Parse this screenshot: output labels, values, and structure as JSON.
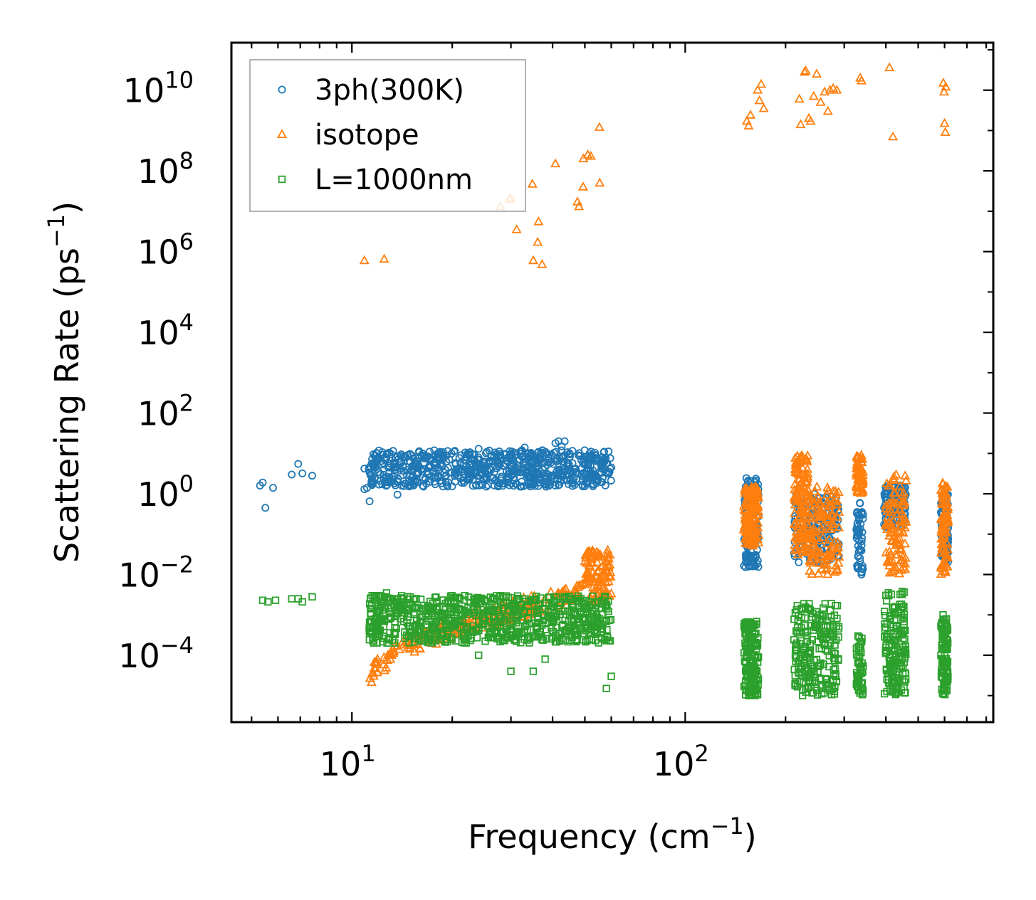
{
  "chart_data": {
    "type": "scatter",
    "xscale": "log",
    "yscale": "log",
    "xlabel": "Frequency (cm",
    "xlabel_sup": "−1",
    "xlabel_end": ")",
    "ylabel": "Scattering Rate (ps",
    "ylabel_sup": "−1",
    "ylabel_end": ")",
    "xlim": [
      4.35,
      840
    ],
    "ylim": [
      2.2e-06,
      150000000000
    ],
    "x_ticks": [
      {
        "value": 10,
        "base": "10",
        "exp": "1"
      },
      {
        "value": 100,
        "base": "10",
        "exp": "2"
      }
    ],
    "y_ticks": [
      {
        "value": 0.0001,
        "base": "10",
        "exp": "−4"
      },
      {
        "value": 0.01,
        "base": "10",
        "exp": "−2"
      },
      {
        "value": 1,
        "base": "10",
        "exp": "0"
      },
      {
        "value": 100,
        "base": "10",
        "exp": "2"
      },
      {
        "value": 10000,
        "base": "10",
        "exp": "4"
      },
      {
        "value": 1000000,
        "base": "10",
        "exp": "6"
      },
      {
        "value": 100000000,
        "base": "10",
        "exp": "8"
      },
      {
        "value": 10000000000,
        "base": "10",
        "exp": "10"
      }
    ],
    "legend_position": "top-left",
    "series": [
      {
        "name": "3ph(300K)",
        "marker": "circle",
        "color": "#1f77b4",
        "points": [
          [
            5.3,
            1.6
          ],
          [
            5.4,
            1.9
          ],
          [
            5.5,
            0.45
          ],
          [
            5.8,
            1.4
          ],
          [
            6.6,
            3.0
          ],
          [
            6.9,
            5.5
          ],
          [
            7.1,
            3.2
          ],
          [
            7.6,
            2.8
          ],
          [
            10.9,
            4.2
          ],
          [
            10.9,
            1.3
          ],
          [
            11.1,
            1.4
          ],
          [
            11.3,
            0.65
          ],
          [
            11.5,
            7.2
          ],
          [
            11.6,
            9.5
          ],
          [
            11.9,
            7.0
          ],
          [
            12.3,
            5.3
          ],
          [
            12.7,
            1.6
          ],
          [
            13.1,
            2.0
          ],
          [
            13.7,
            0.95
          ],
          [
            14.5,
            8.0
          ],
          [
            15.3,
            7.5
          ],
          [
            16.2,
            8.5
          ],
          [
            17.0,
            4.5
          ],
          [
            17.8,
            6.0
          ],
          [
            18.7,
            5.0
          ],
          [
            19.6,
            7.0
          ],
          [
            20.4,
            2.0
          ],
          [
            21.3,
            4.0
          ],
          [
            22.5,
            5.0
          ],
          [
            24.0,
            13.0
          ],
          [
            25.2,
            4.5
          ],
          [
            26.4,
            2.5
          ],
          [
            27.4,
            6.5
          ],
          [
            28.5,
            5.0
          ],
          [
            29.7,
            8.0
          ],
          [
            30.8,
            3.5
          ],
          [
            32.0,
            1.5
          ],
          [
            33.0,
            14.0
          ],
          [
            34.1,
            6.0
          ],
          [
            35.0,
            3.0
          ],
          [
            36.2,
            8.0
          ],
          [
            37.3,
            12.0
          ],
          [
            38.4,
            10.0
          ],
          [
            39.6,
            6.0
          ],
          [
            40.8,
            18.0
          ],
          [
            41.7,
            20.0
          ],
          [
            42.6,
            15.0
          ],
          [
            43.5,
            20.0
          ],
          [
            45.0,
            10.0
          ],
          [
            46.5,
            4.0
          ],
          [
            47.8,
            9.0
          ],
          [
            48.9,
            3.0
          ],
          [
            50.5,
            2.0
          ],
          [
            52.0,
            5.0
          ],
          [
            54.0,
            6.5
          ],
          [
            56.0,
            5.0
          ],
          [
            58.0,
            5.5
          ],
          [
            60.0,
            4.5
          ],
          [
            152,
            1.5
          ],
          [
            152,
            0.02
          ],
          [
            155,
            0.3
          ],
          [
            158,
            0.02
          ],
          [
            162,
            0.5
          ],
          [
            165,
            0.1
          ],
          [
            215,
            0.7
          ],
          [
            220,
            0.3
          ],
          [
            225,
            0.05
          ],
          [
            235,
            0.6
          ],
          [
            240,
            0.1
          ],
          [
            250,
            0.4
          ],
          [
            260,
            0.3
          ],
          [
            275,
            0.5
          ],
          [
            330,
            0.3
          ],
          [
            332,
            0.1
          ],
          [
            335,
            0.04
          ],
          [
            338,
            0.01
          ],
          [
            405,
            1.5
          ],
          [
            420,
            1.0
          ],
          [
            430,
            0.8
          ],
          [
            445,
            0.5
          ],
          [
            590,
            0.5
          ],
          [
            598,
            0.1
          ],
          [
            605,
            0.02
          ],
          [
            610,
            0.3
          ]
        ],
        "clusters": [
          {
            "x": [
              11.2,
              60
            ],
            "y": [
              1.5,
              12
            ],
            "n": 700
          },
          {
            "x": [
              150,
              166
            ],
            "y": [
              0.015,
              2.5
            ],
            "n": 130
          },
          {
            "x": [
              212,
              290
            ],
            "y": [
              0.02,
              1.0
            ],
            "n": 160
          },
          {
            "x": [
              326,
              342
            ],
            "y": [
              0.01,
              0.6
            ],
            "n": 50
          },
          {
            "x": [
              395,
              460
            ],
            "y": [
              0.15,
              1.6
            ],
            "n": 120
          },
          {
            "x": [
              585,
              615
            ],
            "y": [
              0.02,
              1.0
            ],
            "n": 90
          }
        ]
      },
      {
        "name": "isotope",
        "marker": "triangle",
        "color": "#ff7f0e",
        "points": [
          [
            10.9,
            600000
          ],
          [
            12.5,
            650000
          ],
          [
            27.9,
            13000000
          ],
          [
            29.7,
            20000000
          ],
          [
            30.0,
            21000000
          ],
          [
            31.2,
            3500000
          ],
          [
            34.8,
            47000000
          ],
          [
            35.0,
            600000
          ],
          [
            36.1,
            1700000
          ],
          [
            36.3,
            5500000
          ],
          [
            37.2,
            480000
          ],
          [
            40.8,
            150000000
          ],
          [
            47.5,
            17000000
          ],
          [
            48.0,
            13000000
          ],
          [
            49.4,
            40000000
          ],
          [
            49.5,
            200000000
          ],
          [
            51.0,
            250000000
          ],
          [
            52.1,
            230000000
          ],
          [
            55.3,
            1200000000
          ],
          [
            55.4,
            50000000
          ],
          [
            153,
            1700000000
          ],
          [
            155,
            1300000000
          ],
          [
            157,
            2400000000
          ],
          [
            165,
            10000000000
          ],
          [
            167,
            5500000000
          ],
          [
            169,
            14000000000
          ],
          [
            172,
            3500000000
          ],
          [
            220,
            6000000000
          ],
          [
            222,
            1400000000
          ],
          [
            228,
            28000000000
          ],
          [
            230,
            30000000000
          ],
          [
            235,
            2000000000
          ],
          [
            238,
            1700000000
          ],
          [
            243,
            7000000000
          ],
          [
            248,
            25000000000
          ],
          [
            255,
            5000000000
          ],
          [
            262,
            9000000000
          ],
          [
            268,
            3000000000
          ],
          [
            272,
            10000000000
          ],
          [
            278,
            11000000000
          ],
          [
            285,
            10000000000
          ],
          [
            335,
            20000000000
          ],
          [
            338,
            17000000000
          ],
          [
            410,
            36000000000
          ],
          [
            420,
            700000000
          ],
          [
            595,
            15000000000
          ],
          [
            598,
            9000000000
          ],
          [
            600,
            1500000000
          ],
          [
            603,
            900000000
          ],
          [
            605,
            12000000000
          ]
        ],
        "clusters": [
          {
            "x": [
              11.2,
              60
            ],
            "y": [
              2e-05,
              0.005
            ],
            "n": 260,
            "curve": true
          },
          {
            "x": [
              50,
              60
            ],
            "y": [
              0.006,
              0.04
            ],
            "n": 80
          },
          {
            "x": [
              150,
              166
            ],
            "y": [
              0.05,
              1.5
            ],
            "n": 140
          },
          {
            "x": [
              212,
              235
            ],
            "y": [
              0.03,
              9.0
            ],
            "n": 140
          },
          {
            "x": [
              235,
              290
            ],
            "y": [
              0.01,
              1.5
            ],
            "n": 130
          },
          {
            "x": [
              326,
              342
            ],
            "y": [
              1.0,
              9.0
            ],
            "n": 60
          },
          {
            "x": [
              400,
              460
            ],
            "y": [
              0.01,
              3.0
            ],
            "n": 110
          },
          {
            "x": [
              585,
              615
            ],
            "y": [
              0.01,
              2.0
            ],
            "n": 90
          }
        ]
      },
      {
        "name": "L=1000nm",
        "marker": "square",
        "color": "#2ca02c",
        "points": [
          [
            5.4,
            0.0023
          ],
          [
            5.6,
            0.0021
          ],
          [
            5.9,
            0.0023
          ],
          [
            6.6,
            0.0025
          ],
          [
            6.9,
            0.0025
          ],
          [
            7.1,
            0.0021
          ],
          [
            7.6,
            0.0028
          ],
          [
            11.5,
            0.003
          ],
          [
            12.7,
            0.0035
          ],
          [
            14.0,
            0.0008
          ],
          [
            16.0,
            0.0007
          ],
          [
            24.0,
            0.0001
          ],
          [
            30.0,
            4e-05
          ],
          [
            35.0,
            4e-05
          ],
          [
            38.0,
            8e-05
          ],
          [
            58.0,
            1.5e-05
          ],
          [
            60.0,
            3e-05
          ],
          [
            155,
            1e-05
          ],
          [
            162,
            1e-05
          ],
          [
            225,
            1e-05
          ],
          [
            330,
            0.0003
          ],
          [
            420,
            3e-05
          ],
          [
            600,
            1.5e-05
          ]
        ],
        "clusters": [
          {
            "x": [
              11.2,
              60
            ],
            "y": [
              0.0002,
              0.003
            ],
            "n": 750
          },
          {
            "x": [
              150,
              166
            ],
            "y": [
              1e-05,
              0.0007
            ],
            "n": 150
          },
          {
            "x": [
              212,
              290
            ],
            "y": [
              1e-05,
              0.002
            ],
            "n": 220
          },
          {
            "x": [
              326,
              342
            ],
            "y": [
              1e-05,
              0.0003
            ],
            "n": 50
          },
          {
            "x": [
              395,
              460
            ],
            "y": [
              1e-05,
              0.004
            ],
            "n": 160
          },
          {
            "x": [
              585,
              615
            ],
            "y": [
              1e-05,
              0.001
            ],
            "n": 100
          }
        ]
      }
    ]
  }
}
